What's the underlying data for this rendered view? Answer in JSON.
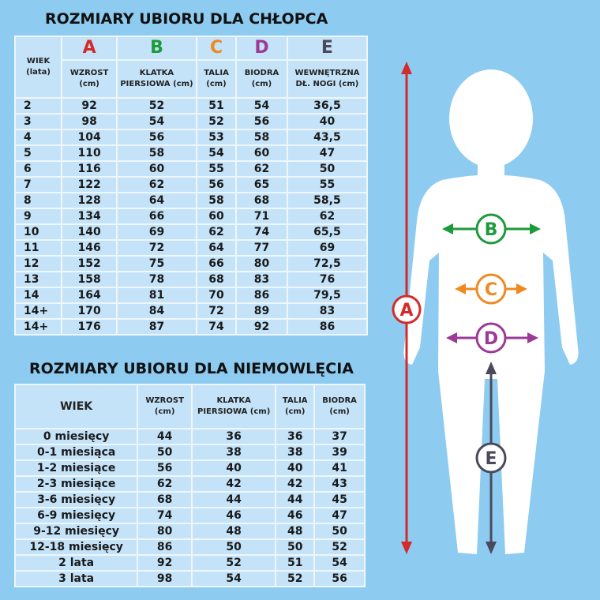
{
  "boys": {
    "title": "ROZMIARY UBIORU DLA CHŁOPCA",
    "letters": [
      {
        "label": "A",
        "color": "#d42a2a"
      },
      {
        "label": "B",
        "color": "#1d9a3a"
      },
      {
        "label": "C",
        "color": "#ef8a22"
      },
      {
        "label": "D",
        "color": "#9b3a97"
      },
      {
        "label": "E",
        "color": "#4b4a5c"
      }
    ],
    "headers": [
      [
        "WIEK",
        "(lata)"
      ],
      [
        "WZROST",
        "(cm)"
      ],
      [
        "KLATKA",
        "PIERSIOWA (cm)"
      ],
      [
        "TALIA",
        "(cm)"
      ],
      [
        "BIODRA",
        "(cm)"
      ],
      [
        "WEWNĘTRZNA",
        "DŁ. NOGI (cm)"
      ]
    ],
    "rows": [
      [
        "2",
        "92",
        "52",
        "51",
        "54",
        "36,5"
      ],
      [
        "3",
        "98",
        "54",
        "52",
        "56",
        "40"
      ],
      [
        "4",
        "104",
        "56",
        "53",
        "58",
        "43,5"
      ],
      [
        "5",
        "110",
        "58",
        "54",
        "60",
        "47"
      ],
      [
        "6",
        "116",
        "60",
        "55",
        "62",
        "50"
      ],
      [
        "7",
        "122",
        "62",
        "56",
        "65",
        "55"
      ],
      [
        "8",
        "128",
        "64",
        "58",
        "68",
        "58,5"
      ],
      [
        "9",
        "134",
        "66",
        "60",
        "71",
        "62"
      ],
      [
        "10",
        "140",
        "69",
        "62",
        "74",
        "65,5"
      ],
      [
        "11",
        "146",
        "72",
        "64",
        "77",
        "69"
      ],
      [
        "12",
        "152",
        "75",
        "66",
        "80",
        "72,5"
      ],
      [
        "13",
        "158",
        "78",
        "68",
        "83",
        "76"
      ],
      [
        "14",
        "164",
        "81",
        "70",
        "86",
        "79,5"
      ],
      [
        "14+",
        "170",
        "84",
        "72",
        "89",
        "83"
      ],
      [
        "14+",
        "176",
        "87",
        "74",
        "92",
        "86"
      ]
    ]
  },
  "infants": {
    "title": "ROZMIARY UBIORU DLA NIEMOWLĘCIA",
    "headers": [
      [
        "WIEK",
        ""
      ],
      [
        "WZROST",
        "(cm)"
      ],
      [
        "KLATKA",
        "PIERSIOWA (cm)"
      ],
      [
        "TALIA",
        "(cm)"
      ],
      [
        "BIODRA",
        "(cm)"
      ]
    ],
    "rows": [
      [
        "0 miesięcy",
        "44",
        "36",
        "36",
        "37"
      ],
      [
        "0-1 miesiąca",
        "50",
        "38",
        "38",
        "39"
      ],
      [
        "1-2 miesiące",
        "56",
        "40",
        "40",
        "41"
      ],
      [
        "2-3 miesiące",
        "62",
        "42",
        "42",
        "43"
      ],
      [
        "3-6 miesięcy",
        "68",
        "44",
        "44",
        "45"
      ],
      [
        "6-9 miesięcy",
        "74",
        "46",
        "46",
        "47"
      ],
      [
        "9-12 miesięcy",
        "80",
        "48",
        "48",
        "50"
      ],
      [
        "12-18 miesięcy",
        "86",
        "50",
        "50",
        "52"
      ],
      [
        "2 lata",
        "92",
        "52",
        "51",
        "54"
      ],
      [
        "3 lata",
        "98",
        "54",
        "52",
        "56"
      ]
    ]
  },
  "figure": {
    "markers": [
      "A",
      "B",
      "C",
      "D",
      "E"
    ]
  }
}
